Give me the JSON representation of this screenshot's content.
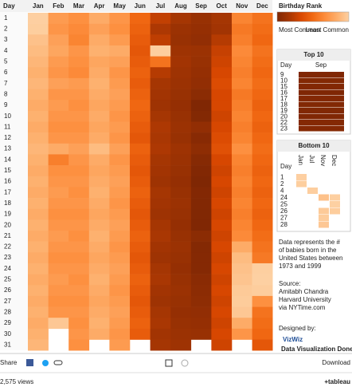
{
  "chart_data": {
    "type": "heatmap",
    "corner_label": "Day",
    "months": [
      "Jan",
      "Feb",
      "Mar",
      "Apr",
      "May",
      "Jun",
      "Jul",
      "Aug",
      "Sep",
      "Oct",
      "Nov",
      "Dec"
    ],
    "days": [
      "1",
      "2",
      "3",
      "4",
      "5",
      "6",
      "7",
      "8",
      "9",
      "10",
      "11",
      "12",
      "13",
      "14",
      "15",
      "16",
      "17",
      "18",
      "19",
      "20",
      "21",
      "22",
      "23",
      "24",
      "25",
      "26",
      "27",
      "28",
      "29",
      "30",
      "31"
    ],
    "values": [
      [
        365,
        270,
        250,
        300,
        260,
        180,
        95,
        60,
        40,
        60,
        230,
        200
      ],
      [
        362,
        260,
        240,
        280,
        250,
        170,
        70,
        45,
        35,
        55,
        210,
        190
      ],
      [
        340,
        280,
        230,
        300,
        270,
        160,
        90,
        40,
        30,
        80,
        220,
        180
      ],
      [
        330,
        290,
        260,
        310,
        300,
        150,
        363,
        50,
        45,
        100,
        240,
        200
      ],
      [
        320,
        270,
        250,
        290,
        280,
        160,
        200,
        55,
        40,
        110,
        230,
        190
      ],
      [
        310,
        260,
        240,
        300,
        260,
        170,
        80,
        50,
        35,
        120,
        220,
        180
      ],
      [
        320,
        280,
        270,
        310,
        270,
        160,
        60,
        45,
        30,
        130,
        230,
        190
      ],
      [
        310,
        260,
        260,
        300,
        280,
        170,
        55,
        40,
        20,
        120,
        210,
        180
      ],
      [
        300,
        270,
        250,
        290,
        270,
        180,
        50,
        35,
        3,
        120,
        220,
        170
      ],
      [
        310,
        260,
        260,
        300,
        260,
        170,
        60,
        40,
        8,
        110,
        230,
        180
      ],
      [
        300,
        250,
        250,
        290,
        270,
        160,
        70,
        45,
        30,
        120,
        220,
        170
      ],
      [
        310,
        260,
        260,
        300,
        260,
        150,
        65,
        40,
        15,
        130,
        230,
        180
      ],
      [
        320,
        300,
        280,
        330,
        280,
        170,
        70,
        50,
        25,
        140,
        250,
        190
      ],
      [
        310,
        220,
        260,
        300,
        260,
        160,
        60,
        45,
        12,
        120,
        230,
        180
      ],
      [
        300,
        250,
        250,
        290,
        270,
        150,
        55,
        40,
        5,
        110,
        220,
        170
      ],
      [
        310,
        260,
        260,
        300,
        280,
        160,
        50,
        35,
        1,
        120,
        230,
        180
      ],
      [
        300,
        270,
        250,
        310,
        270,
        170,
        60,
        40,
        7,
        110,
        220,
        170
      ],
      [
        310,
        260,
        260,
        300,
        260,
        160,
        55,
        45,
        6,
        120,
        230,
        180
      ],
      [
        300,
        250,
        250,
        290,
        270,
        150,
        50,
        40,
        4,
        110,
        220,
        170
      ],
      [
        310,
        260,
        260,
        300,
        280,
        160,
        60,
        35,
        2,
        120,
        230,
        180
      ],
      [
        300,
        270,
        250,
        310,
        270,
        170,
        65,
        40,
        20,
        110,
        240,
        190
      ],
      [
        310,
        260,
        260,
        300,
        260,
        160,
        55,
        45,
        9,
        120,
        300,
        200
      ],
      [
        300,
        250,
        250,
        290,
        270,
        150,
        50,
        40,
        10,
        110,
        330,
        210
      ],
      [
        310,
        260,
        260,
        300,
        280,
        160,
        60,
        35,
        11,
        120,
        340,
        364
      ],
      [
        300,
        270,
        250,
        310,
        270,
        170,
        65,
        40,
        18,
        110,
        345,
        366
      ],
      [
        310,
        260,
        260,
        300,
        260,
        160,
        55,
        45,
        22,
        120,
        355,
        361
      ],
      [
        300,
        250,
        250,
        290,
        270,
        150,
        50,
        40,
        25,
        110,
        358,
        250
      ],
      [
        310,
        260,
        260,
        300,
        280,
        160,
        60,
        35,
        30,
        120,
        350,
        200
      ],
      [
        300,
        350,
        250,
        310,
        270,
        170,
        65,
        40,
        35,
        110,
        300,
        190
      ],
      [
        310,
        null,
        260,
        300,
        260,
        160,
        55,
        45,
        40,
        120,
        260,
        180
      ],
      [
        320,
        null,
        250,
        null,
        270,
        null,
        60,
        50,
        null,
        110,
        null,
        150
      ]
    ],
    "value_range": [
      1,
      366
    ],
    "color_scale": [
      "#7f2704",
      "#a63603",
      "#d94801",
      "#f16913",
      "#fd8d3c",
      "#fdae6b",
      "#fdd0a2"
    ],
    "legend": {
      "title": "Birthday Rank",
      "low_label": "Most Common",
      "high_label": "Least Common"
    },
    "top_10": {
      "title": "Top 10",
      "corner_label": "Day",
      "columns": [
        "Sep"
      ],
      "days": [
        "9",
        "10",
        "15",
        "16",
        "17",
        "18",
        "19",
        "20",
        "22",
        "23"
      ],
      "values": [
        [
          3
        ],
        [
          8
        ],
        [
          5
        ],
        [
          1
        ],
        [
          7
        ],
        [
          6
        ],
        [
          4
        ],
        [
          2
        ],
        [
          9
        ],
        [
          10
        ]
      ]
    },
    "bottom_10": {
      "title": "Bottom 10",
      "corner_label": "Day",
      "columns": [
        "Jan",
        "Jul",
        "Nov",
        "Dec"
      ],
      "days": [
        "1",
        "2",
        "4",
        "24",
        "25",
        "26",
        "27",
        "28"
      ],
      "values": [
        [
          365,
          null,
          null,
          null
        ],
        [
          362,
          null,
          null,
          null
        ],
        [
          null,
          363,
          null,
          null
        ],
        [
          null,
          null,
          340,
          364
        ],
        [
          null,
          null,
          null,
          366
        ],
        [
          null,
          null,
          355,
          361
        ],
        [
          null,
          null,
          358,
          null
        ],
        [
          null,
          null,
          350,
          null
        ]
      ]
    },
    "description": [
      "Data represents the #",
      "of babies born in the",
      "United States between",
      "1973 and 1999"
    ],
    "source": [
      "Source:",
      "Amitabh Chandra",
      "Harvard University",
      "via NYTime.com"
    ],
    "credit": {
      "label": "Designed by:",
      "name": "VizWiz",
      "tagline": "Data Visualization Done Right"
    },
    "footer": {
      "share": "Share",
      "download": "Download",
      "views": "2,575 views",
      "brand": "+tableau"
    }
  }
}
